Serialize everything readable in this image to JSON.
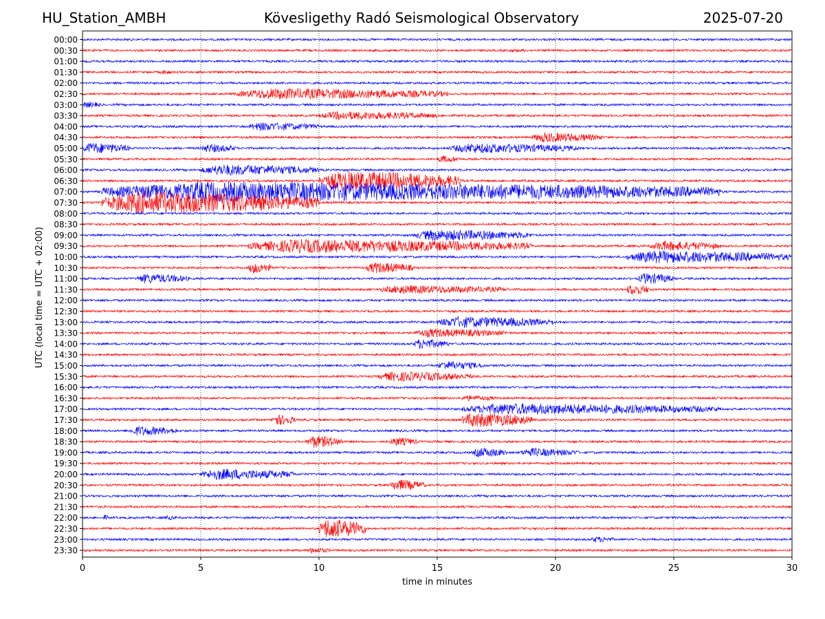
{
  "header": {
    "station": "HU_Station_AMBH",
    "observatory": "Kövesligethy Radó Seismological Observatory",
    "date": "2025-07-20"
  },
  "chart_data": {
    "type": "helicorder",
    "title": "Kövesligethy Radó Seismological Observatory",
    "xlabel": "time in minutes",
    "ylabel": "UTC (local time = UTC + 02:00)",
    "xlim": [
      0,
      30
    ],
    "x_ticks": [
      0,
      5,
      10,
      15,
      20,
      25,
      30
    ],
    "x_tick_labels": [
      "0",
      "5",
      "10",
      "15",
      "20",
      "25",
      "30"
    ],
    "grid": "vertical dotted lines at each x tick",
    "series_colors": [
      "#0000ff",
      "#ff0000"
    ],
    "row_labels": [
      "00:00",
      "00:30",
      "01:00",
      "01:30",
      "02:00",
      "02:30",
      "03:00",
      "03:30",
      "04:00",
      "04:30",
      "05:00",
      "05:30",
      "06:00",
      "06:30",
      "07:00",
      "07:30",
      "08:00",
      "08:30",
      "09:00",
      "09:30",
      "10:00",
      "10:30",
      "11:00",
      "11:30",
      "12:00",
      "12:30",
      "13:00",
      "13:30",
      "14:00",
      "14:30",
      "15:00",
      "15:30",
      "16:00",
      "16:30",
      "17:00",
      "17:30",
      "18:00",
      "18:30",
      "19:00",
      "19:30",
      "20:00",
      "20:30",
      "21:00",
      "21:30",
      "22:00",
      "22:30",
      "23:00",
      "23:30"
    ],
    "events": [
      {
        "row": 1,
        "start": 18,
        "end": 19,
        "amp": 3
      },
      {
        "row": 3,
        "start": 3.3,
        "end": 3.8,
        "amp": 4
      },
      {
        "row": 5,
        "start": 6.5,
        "end": 15.5,
        "amp": 9
      },
      {
        "row": 6,
        "start": 0,
        "end": 0.8,
        "amp": 5
      },
      {
        "row": 7,
        "start": 10,
        "end": 15,
        "amp": 7
      },
      {
        "row": 8,
        "start": 7,
        "end": 10,
        "amp": 7
      },
      {
        "row": 9,
        "start": 19,
        "end": 22,
        "amp": 8
      },
      {
        "row": 10,
        "start": 0,
        "end": 2,
        "amp": 9
      },
      {
        "row": 10,
        "start": 5,
        "end": 6.5,
        "amp": 7
      },
      {
        "row": 10,
        "start": 15.5,
        "end": 21,
        "amp": 8
      },
      {
        "row": 11,
        "start": 15,
        "end": 16,
        "amp": 6
      },
      {
        "row": 12,
        "start": 5,
        "end": 10,
        "amp": 9
      },
      {
        "row": 13,
        "start": 10,
        "end": 16,
        "amp": 16
      },
      {
        "row": 14,
        "start": 0.8,
        "end": 27,
        "amp": 16
      },
      {
        "row": 15,
        "start": 0.8,
        "end": 10,
        "amp": 18
      },
      {
        "row": 18,
        "start": 14,
        "end": 19,
        "amp": 9
      },
      {
        "row": 19,
        "start": 7,
        "end": 19,
        "amp": 11
      },
      {
        "row": 19,
        "start": 24,
        "end": 27,
        "amp": 8
      },
      {
        "row": 20,
        "start": 23,
        "end": 30,
        "amp": 10
      },
      {
        "row": 21,
        "start": 7,
        "end": 8,
        "amp": 9
      },
      {
        "row": 21,
        "start": 12,
        "end": 14,
        "amp": 9
      },
      {
        "row": 22,
        "start": 2.3,
        "end": 4.5,
        "amp": 8
      },
      {
        "row": 22,
        "start": 23.5,
        "end": 25,
        "amp": 9
      },
      {
        "row": 23,
        "start": 12.5,
        "end": 18,
        "amp": 7
      },
      {
        "row": 23,
        "start": 23,
        "end": 24,
        "amp": 9
      },
      {
        "row": 26,
        "start": 15,
        "end": 20,
        "amp": 9
      },
      {
        "row": 27,
        "start": 14,
        "end": 18,
        "amp": 7
      },
      {
        "row": 28,
        "start": 14,
        "end": 15.5,
        "amp": 8
      },
      {
        "row": 30,
        "start": 15,
        "end": 17,
        "amp": 7
      },
      {
        "row": 31,
        "start": 12.5,
        "end": 16.5,
        "amp": 8
      },
      {
        "row": 33,
        "start": 16,
        "end": 17.5,
        "amp": 5
      },
      {
        "row": 34,
        "start": 16,
        "end": 27,
        "amp": 9
      },
      {
        "row": 35,
        "start": 8,
        "end": 9,
        "amp": 9
      },
      {
        "row": 35,
        "start": 16,
        "end": 19,
        "amp": 12
      },
      {
        "row": 36,
        "start": 2,
        "end": 4,
        "amp": 8
      },
      {
        "row": 37,
        "start": 9.5,
        "end": 11,
        "amp": 10
      },
      {
        "row": 37,
        "start": 13,
        "end": 14.2,
        "amp": 7
      },
      {
        "row": 38,
        "start": 16.5,
        "end": 18,
        "amp": 8
      },
      {
        "row": 38,
        "start": 18.5,
        "end": 21,
        "amp": 7
      },
      {
        "row": 40,
        "start": 5,
        "end": 9,
        "amp": 9
      },
      {
        "row": 41,
        "start": 13,
        "end": 14.5,
        "amp": 9
      },
      {
        "row": 44,
        "start": 0.9,
        "end": 1.1,
        "amp": 5
      },
      {
        "row": 44,
        "start": 3.5,
        "end": 4,
        "amp": 4
      },
      {
        "row": 45,
        "start": 10,
        "end": 12,
        "amp": 16
      },
      {
        "row": 46,
        "start": 21.5,
        "end": 22.5,
        "amp": 5
      },
      {
        "row": 47,
        "start": 9.5,
        "end": 10.5,
        "amp": 5
      }
    ]
  }
}
